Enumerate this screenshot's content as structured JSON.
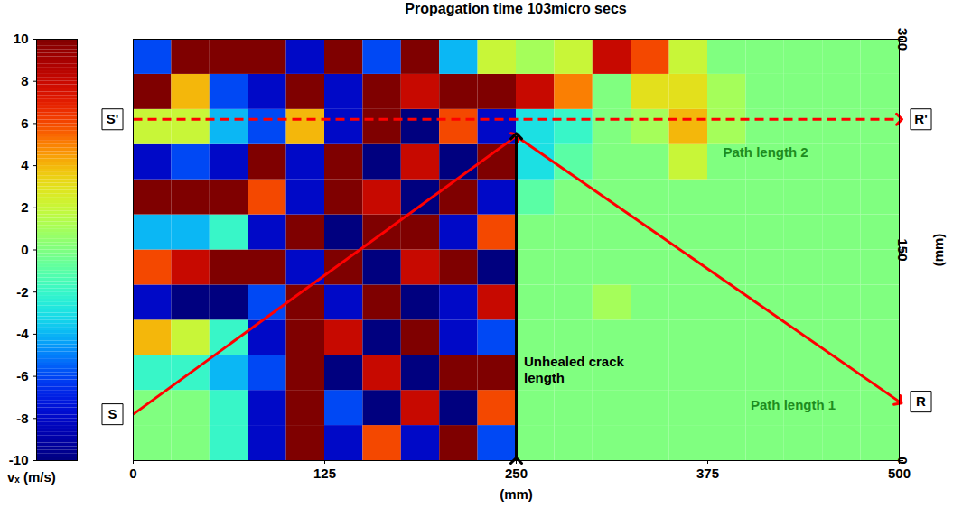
{
  "chart_data": {
    "type": "heatmap",
    "title": "Propagation time 103micro secs",
    "x_label": "(mm)",
    "y_label": "(mm)",
    "xlim": [
      0,
      500
    ],
    "xticks": [
      0,
      125,
      250,
      375,
      500
    ],
    "ylim": [
      0,
      300
    ],
    "yticks": [
      0,
      150,
      300
    ],
    "cells": {
      "x": [
        12.5,
        37.5,
        62.5,
        87.5,
        112.5,
        137.5,
        162.5,
        187.5,
        212.5,
        237.5,
        262.5,
        287.5,
        312.5,
        337.5,
        362.5,
        387.5,
        412.5,
        437.5,
        462.5,
        487.5
      ],
      "y": [
        12.5,
        37.5,
        62.5,
        87.5,
        112.5,
        137.5,
        162.5,
        187.5,
        212.5,
        237.5,
        262.5,
        287.5
      ],
      "values": [
        [
          0,
          0,
          -2,
          -8,
          10,
          -8,
          6,
          -8,
          10,
          -6,
          0,
          0,
          0,
          0,
          0,
          0,
          0,
          0,
          0,
          0
        ],
        [
          0,
          0,
          -2,
          -8,
          10,
          -6,
          -10,
          8,
          -10,
          6,
          0,
          0,
          0,
          0,
          0,
          0,
          0,
          0,
          0,
          0
        ],
        [
          -2,
          -2,
          -4,
          -6,
          10,
          -10,
          8,
          -10,
          10,
          10,
          0,
          0,
          0,
          0,
          0,
          0,
          0,
          0,
          0,
          0
        ],
        [
          4,
          2,
          -2,
          -8,
          10,
          8,
          -10,
          10,
          -8,
          -6,
          0,
          0,
          0,
          0,
          0,
          0,
          0,
          0,
          0,
          0
        ],
        [
          -8,
          -10,
          -10,
          -6,
          10,
          -8,
          10,
          -10,
          -8,
          8,
          0,
          0,
          1,
          0,
          0,
          0,
          0,
          0,
          0,
          0
        ],
        [
          6,
          8,
          10,
          10,
          -8,
          10,
          -10,
          8,
          10,
          -10,
          0,
          0,
          0,
          0,
          0,
          0,
          0,
          0,
          0,
          0
        ],
        [
          -4,
          -4,
          -2,
          -8,
          10,
          -10,
          10,
          10,
          -8,
          6,
          0,
          0,
          0,
          0,
          0,
          0,
          0,
          0,
          0,
          0
        ],
        [
          10,
          10,
          10,
          6,
          -8,
          10,
          8,
          -10,
          10,
          -8,
          -1,
          0,
          0,
          0,
          0,
          0,
          0,
          0,
          0,
          0
        ],
        [
          -8,
          -6,
          -8,
          10,
          -8,
          10,
          -10,
          8,
          -10,
          10,
          -3,
          -1,
          0,
          0,
          2,
          0,
          0,
          0,
          0,
          0
        ],
        [
          2,
          2,
          -4,
          -6,
          4,
          -8,
          10,
          -10,
          6,
          -8,
          -3,
          -2,
          0,
          1,
          4,
          1,
          0,
          0,
          0,
          0
        ],
        [
          10,
          4,
          -6,
          -8,
          10,
          -8,
          10,
          8,
          10,
          10,
          8,
          5,
          0,
          3,
          3,
          1,
          0,
          0,
          0,
          0
        ],
        [
          -6,
          10,
          10,
          10,
          -8,
          10,
          -6,
          10,
          -4,
          2,
          1,
          2,
          8,
          6,
          2,
          0,
          0,
          0,
          0,
          0
        ]
      ]
    },
    "colorbar": {
      "label": "vₓ (m/s)",
      "range": [
        -10,
        10
      ],
      "ticks": [
        -10,
        -8,
        -6,
        -4,
        -2,
        0,
        2,
        4,
        6,
        8,
        10
      ]
    },
    "points": [
      {
        "label": "S",
        "x": 0,
        "y": 33
      },
      {
        "label": "S'",
        "x": 0,
        "y": 243
      },
      {
        "label": "R",
        "x": 500,
        "y": 42
      },
      {
        "label": "R'",
        "x": 500,
        "y": 243
      }
    ],
    "paths": [
      {
        "from": [
          0,
          33
        ],
        "to": [
          250,
          231
        ],
        "color": "#ff0000",
        "line_style": "solid",
        "marker": "arrow"
      },
      {
        "from": [
          250,
          231
        ],
        "to": [
          500,
          42
        ],
        "color": "#ff0000",
        "line_style": "solid",
        "marker": "arrow"
      },
      {
        "from": [
          0,
          243
        ],
        "to": [
          500,
          243
        ],
        "color": "#ff0000",
        "line_style": "dashed",
        "marker": "arrow"
      },
      {
        "from": [
          250,
          0
        ],
        "to": [
          250,
          231
        ],
        "color": "#000000",
        "line_style": "solid",
        "marker": "double_arrow"
      }
    ],
    "annotations": [
      {
        "text": "Unhealed crack length",
        "x": 255,
        "y": 65,
        "color": "#000000"
      },
      {
        "text": "Path length 2",
        "x": 385,
        "y": 220,
        "color": "#1e8c1e"
      },
      {
        "text": "Path length 1",
        "x": 403,
        "y": 40,
        "color": "#1e8c1e"
      }
    ]
  }
}
